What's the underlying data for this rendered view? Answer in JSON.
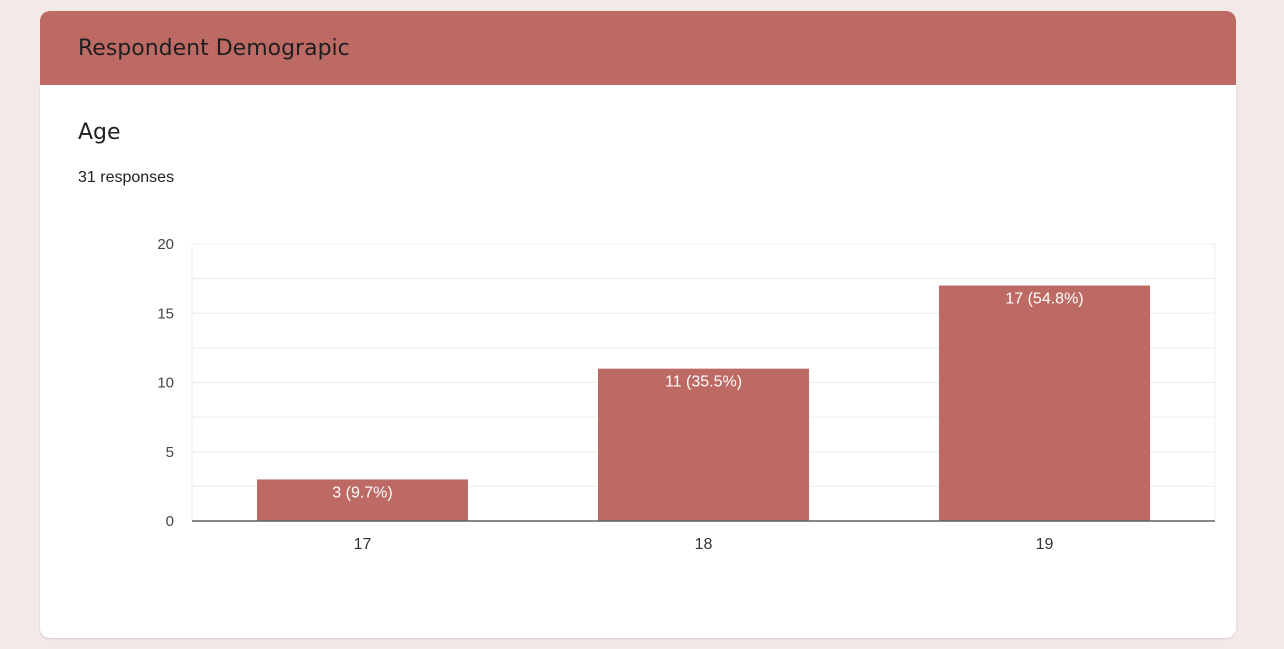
{
  "header": {
    "title": "Respondent Demograpic"
  },
  "question": {
    "title": "Age",
    "responses": "31 responses"
  },
  "colors": {
    "bar": "#bd6a64",
    "header": "#bd6a64",
    "grid": "#ececec",
    "axis": "#5f6368"
  },
  "chart_data": {
    "type": "bar",
    "title": "",
    "xlabel": "",
    "ylabel": "",
    "categories": [
      "17",
      "18",
      "19"
    ],
    "values": [
      3,
      11,
      17
    ],
    "data_labels": [
      "3 (9.7%)",
      "11 (35.5%)",
      "17 (54.8%)"
    ],
    "ylim": [
      0,
      20
    ],
    "yticks": [
      0,
      5,
      10,
      15,
      20
    ],
    "grid": true
  }
}
